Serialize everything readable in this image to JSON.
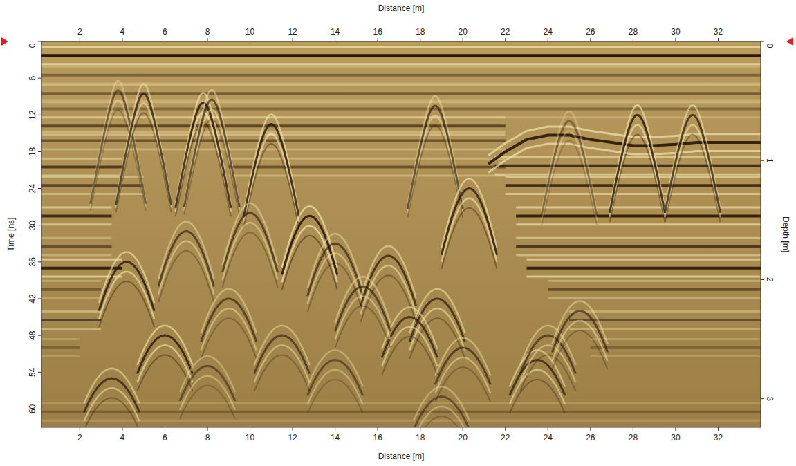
{
  "chart_data": {
    "type": "radargram",
    "x_label": "Distance [m]",
    "y_label": "Time [ns]",
    "y2_label": "Depth [m]",
    "xlim": [
      0.2,
      34
    ],
    "xticks": [
      2,
      4,
      6,
      8,
      10,
      12,
      14,
      16,
      18,
      20,
      22,
      24,
      26,
      28,
      30,
      32
    ],
    "ylim": [
      0,
      63
    ],
    "yticks": [
      0,
      6,
      12,
      18,
      24,
      30,
      36,
      42,
      48,
      54,
      60
    ],
    "y2lim": [
      0,
      3.24
    ],
    "y2ticks": [
      0,
      1,
      2,
      3
    ],
    "color": "#2a1606",
    "reflectors": [
      {
        "t": 2.3,
        "x0": 0.2,
        "x1": 34,
        "amplitude": 1.0
      },
      {
        "t": 5.5,
        "x0": 0.2,
        "x1": 34,
        "amplitude": 0.4
      },
      {
        "t": 8.5,
        "x0": 0.2,
        "x1": 34,
        "amplitude": 0.45
      },
      {
        "t": 11,
        "x0": 0.2,
        "x1": 34,
        "amplitude": 0.35
      },
      {
        "t": 13.8,
        "x0": 0.2,
        "x1": 22,
        "amplitude": 0.6
      },
      {
        "t": 16.2,
        "x0": 0.2,
        "x1": 22,
        "amplitude": 0.5
      },
      {
        "t": 20.5,
        "x0": 0.2,
        "x1": 4,
        "amplitude": 0.7
      },
      {
        "t": 20.5,
        "x0": 9,
        "x1": 22,
        "amplitude": 0.5
      },
      {
        "t": 20.3,
        "x0": 21.5,
        "x1": 34,
        "amplitude": 0.8
      },
      {
        "t": 23.5,
        "x0": 0.2,
        "x1": 5,
        "amplitude": 0.6
      },
      {
        "t": 23.5,
        "x0": 22,
        "x1": 34,
        "amplitude": 0.8
      },
      {
        "t": 28.5,
        "x0": 0.2,
        "x1": 3.5,
        "amplitude": 0.8
      },
      {
        "t": 28.5,
        "x0": 22.5,
        "x1": 34,
        "amplitude": 0.9
      },
      {
        "t": 33.5,
        "x0": 0.2,
        "x1": 3.5,
        "amplitude": 0.5
      },
      {
        "t": 33.5,
        "x0": 22.5,
        "x1": 34,
        "amplitude": 0.7
      },
      {
        "t": 37,
        "x0": 0.2,
        "x1": 4,
        "amplitude": 0.9
      },
      {
        "t": 37,
        "x0": 23,
        "x1": 34,
        "amplitude": 0.9
      },
      {
        "t": 40.5,
        "x0": 0.2,
        "x1": 3,
        "amplitude": 0.4
      },
      {
        "t": 40.5,
        "x0": 24,
        "x1": 34,
        "amplitude": 0.5
      },
      {
        "t": 45.5,
        "x0": 0.2,
        "x1": 3,
        "amplitude": 0.6
      },
      {
        "t": 45.5,
        "x0": 25,
        "x1": 34,
        "amplitude": 0.5
      },
      {
        "t": 50,
        "x0": 0.2,
        "x1": 2,
        "amplitude": 0.3
      },
      {
        "t": 50,
        "x0": 26,
        "x1": 34,
        "amplitude": 0.3
      },
      {
        "t": 60.5,
        "x0": 0.2,
        "x1": 34,
        "amplitude": 0.3
      }
    ],
    "interface": {
      "x": [
        21.2,
        22,
        23,
        24,
        25,
        26,
        27,
        28,
        29,
        30,
        31,
        32,
        34
      ],
      "t": [
        20,
        18,
        16,
        15.3,
        15.3,
        16,
        16.5,
        17,
        17,
        16.8,
        16.5,
        16.5,
        16.5
      ]
    },
    "hyperbolas": [
      {
        "x": 3.8,
        "t": 8,
        "amplitude": 0.5
      },
      {
        "x": 5,
        "t": 8.5,
        "amplitude": 0.7
      },
      {
        "x": 7.8,
        "t": 10,
        "amplitude": 0.8
      },
      {
        "x": 8.2,
        "t": 9.5,
        "amplitude": 0.6
      },
      {
        "x": 11,
        "t": 13.5,
        "amplitude": 0.8
      },
      {
        "x": 18.7,
        "t": 10.5,
        "amplitude": 0.6
      },
      {
        "x": 28.2,
        "t": 12,
        "amplitude": 0.8
      },
      {
        "x": 30.8,
        "t": 12,
        "amplitude": 0.7
      },
      {
        "x": 25,
        "t": 13,
        "amplitude": 0.4
      },
      {
        "x": 4.2,
        "t": 36,
        "amplitude": 0.8
      },
      {
        "x": 6,
        "t": 48,
        "amplitude": 0.8
      },
      {
        "x": 3.5,
        "t": 55,
        "amplitude": 0.7
      },
      {
        "x": 7,
        "t": 31,
        "amplitude": 0.6
      },
      {
        "x": 10,
        "t": 28,
        "amplitude": 0.6
      },
      {
        "x": 12.8,
        "t": 28.5,
        "amplitude": 0.9
      },
      {
        "x": 14,
        "t": 33,
        "amplitude": 0.6
      },
      {
        "x": 16.5,
        "t": 35,
        "amplitude": 0.7
      },
      {
        "x": 18.8,
        "t": 42,
        "amplitude": 0.7
      },
      {
        "x": 17.5,
        "t": 45,
        "amplitude": 0.7
      },
      {
        "x": 20.3,
        "t": 24,
        "amplitude": 0.8
      },
      {
        "x": 15.3,
        "t": 40,
        "amplitude": 0.6
      },
      {
        "x": 9,
        "t": 42,
        "amplitude": 0.6
      },
      {
        "x": 11.5,
        "t": 48,
        "amplitude": 0.6
      },
      {
        "x": 14,
        "t": 52,
        "amplitude": 0.5
      },
      {
        "x": 20,
        "t": 50,
        "amplitude": 0.6
      },
      {
        "x": 23.5,
        "t": 52,
        "amplitude": 0.7
      },
      {
        "x": 24,
        "t": 48,
        "amplitude": 0.6
      },
      {
        "x": 25.5,
        "t": 44,
        "amplitude": 0.6
      },
      {
        "x": 8,
        "t": 53,
        "amplitude": 0.5
      },
      {
        "x": 19,
        "t": 58,
        "amplitude": 0.5
      }
    ]
  }
}
